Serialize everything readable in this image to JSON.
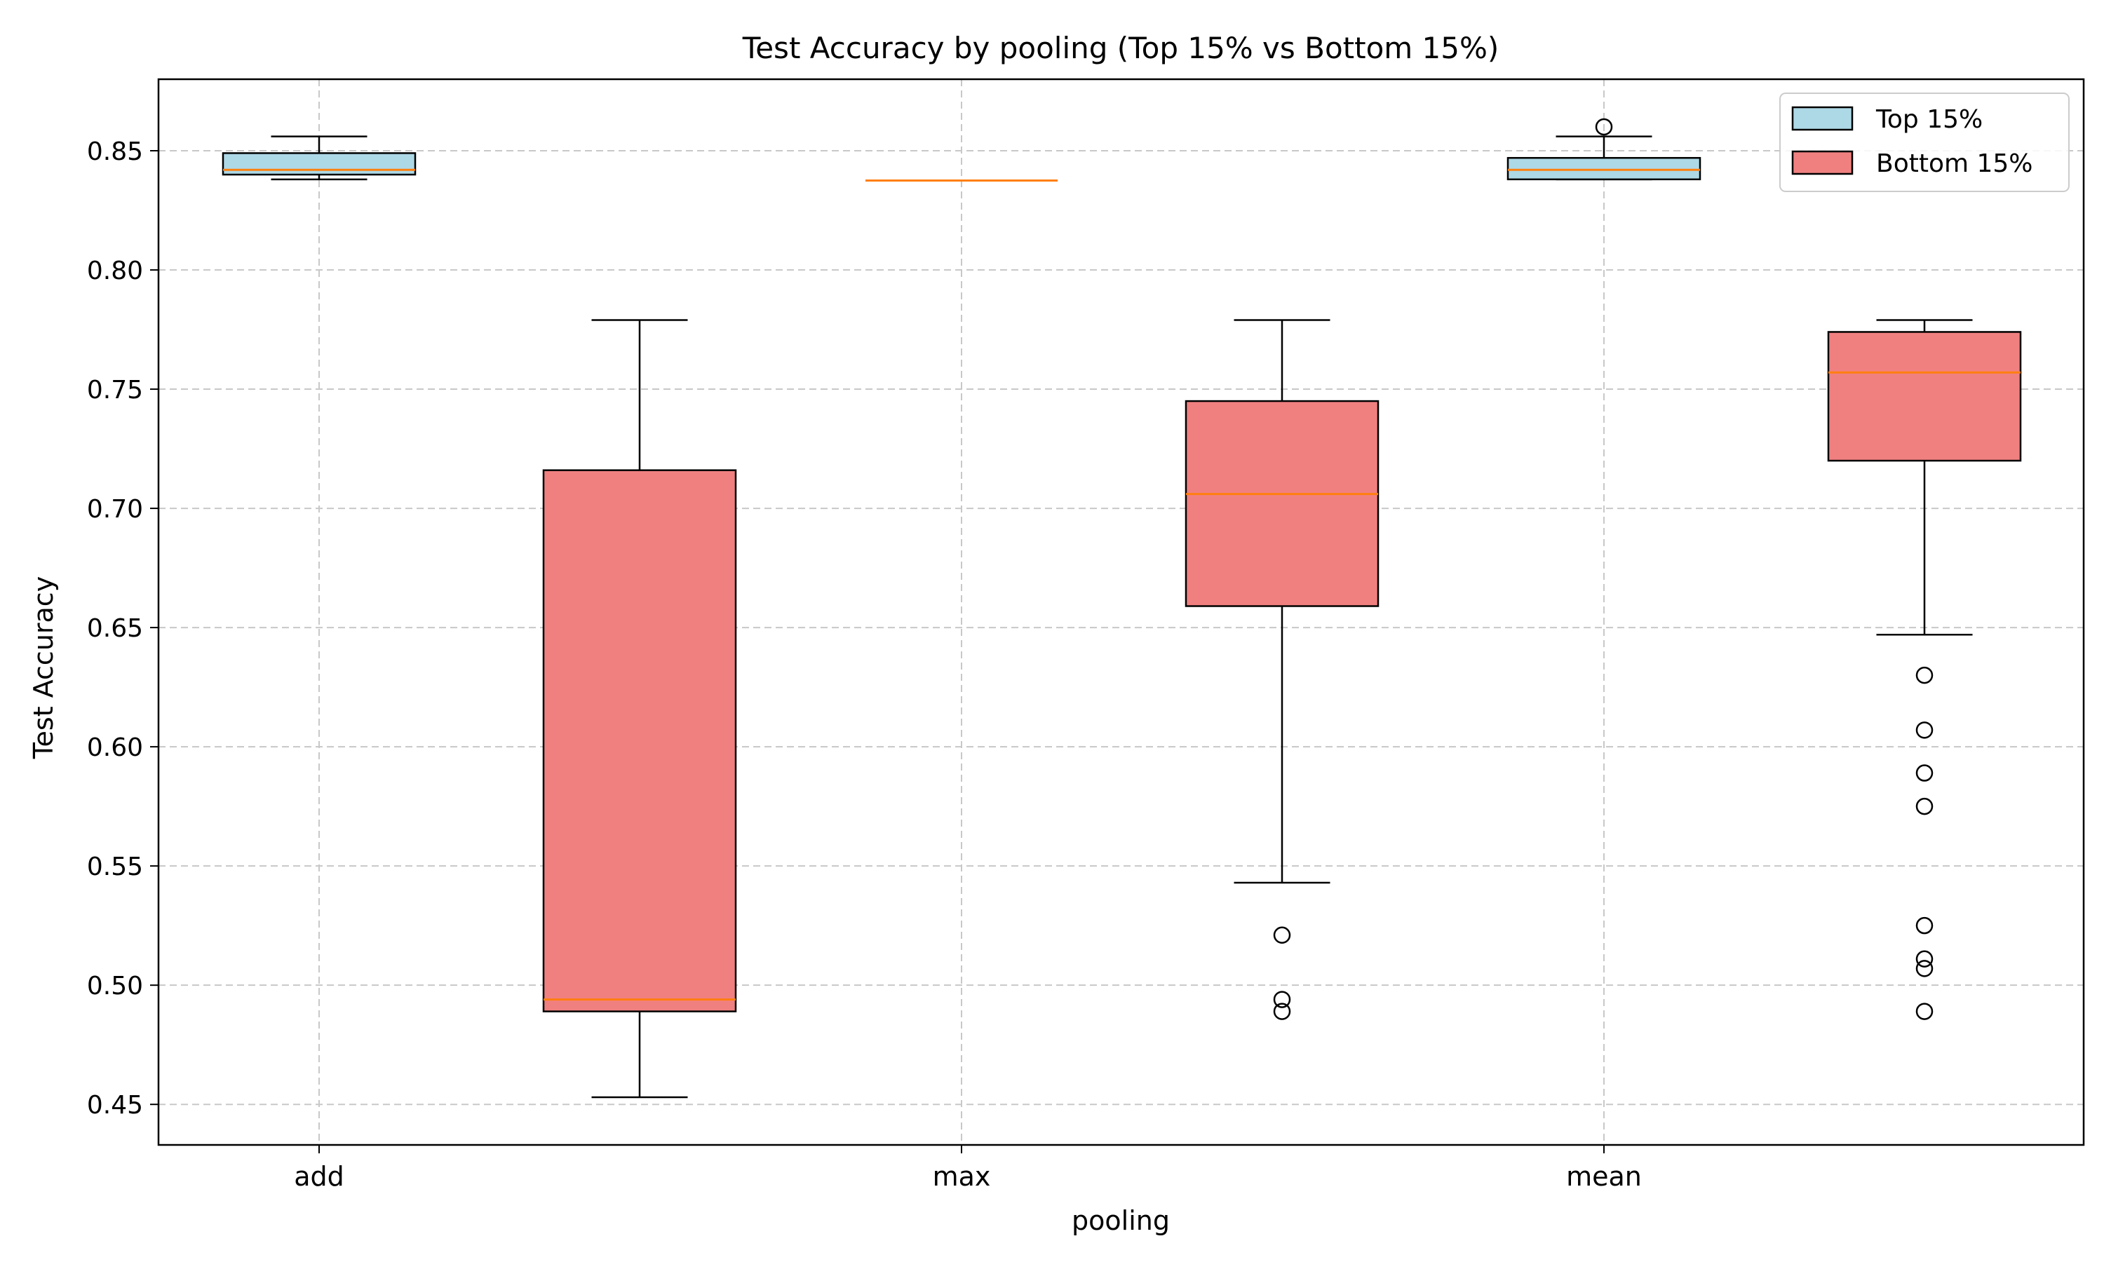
{
  "chart_data": {
    "type": "box",
    "title": "Test Accuracy by pooling (Top 15% vs Bottom 15%)",
    "xlabel": "pooling",
    "ylabel": "Test Accuracy",
    "categories": [
      "add",
      "max",
      "mean"
    ],
    "ylim": [
      0.433,
      0.88
    ],
    "yticks": [
      "0.45",
      "0.50",
      "0.55",
      "0.60",
      "0.65",
      "0.70",
      "0.75",
      "0.80",
      "0.85"
    ],
    "grid": true,
    "legend_position": "top-right",
    "colors": {
      "top_fill": "#add8e6",
      "bottom_fill": "#f08080",
      "median": "#ff7f0e",
      "grid": "#c8c8c8"
    },
    "series": [
      {
        "name": "Top 15%",
        "boxes": [
          {
            "category": "add",
            "whisker_low": 0.838,
            "q1": 0.84,
            "median": 0.842,
            "q3": 0.849,
            "whisker_high": 0.856,
            "outliers": []
          },
          {
            "category": "max",
            "whisker_low": 0.8375,
            "q1": 0.8375,
            "median": 0.8375,
            "q3": 0.8375,
            "whisker_high": 0.8375,
            "outliers": []
          },
          {
            "category": "mean",
            "whisker_low": 0.838,
            "q1": 0.838,
            "median": 0.842,
            "q3": 0.847,
            "whisker_high": 0.856,
            "outliers": [
              0.86
            ]
          }
        ]
      },
      {
        "name": "Bottom 15%",
        "boxes": [
          {
            "category": "add",
            "whisker_low": 0.453,
            "q1": 0.489,
            "median": 0.494,
            "q3": 0.716,
            "whisker_high": 0.779,
            "outliers": []
          },
          {
            "category": "max",
            "whisker_low": 0.543,
            "q1": 0.659,
            "median": 0.706,
            "q3": 0.745,
            "whisker_high": 0.779,
            "outliers": [
              0.521,
              0.494,
              0.489
            ]
          },
          {
            "category": "mean",
            "whisker_low": 0.647,
            "q1": 0.72,
            "median": 0.757,
            "q3": 0.774,
            "whisker_high": 0.779,
            "outliers": [
              0.63,
              0.607,
              0.589,
              0.575,
              0.525,
              0.511,
              0.507,
              0.489
            ]
          }
        ]
      }
    ]
  }
}
